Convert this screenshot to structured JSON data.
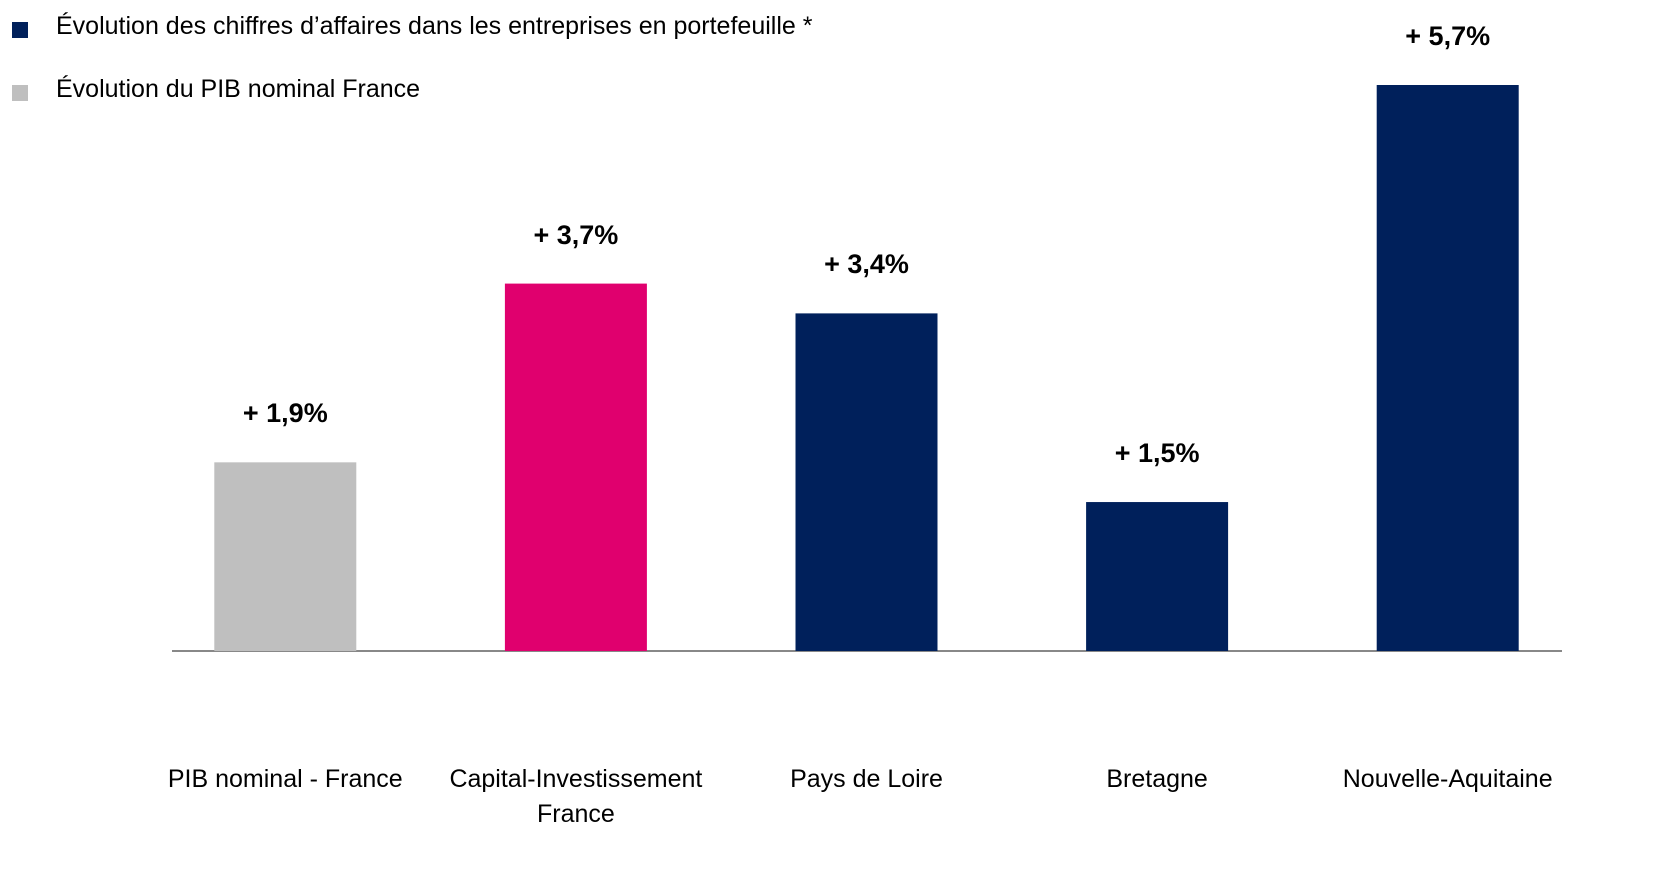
{
  "chart_data": {
    "type": "bar",
    "legend": [
      {
        "name": "Évolution des chiffres d’affaires dans les entreprises en portefeuille *",
        "color": "#00205b"
      },
      {
        "name": "Évolution du PIB nominal France",
        "color": "#bfbfbf"
      }
    ],
    "categories": [
      "PIB nominal - France",
      "Capital-Investissement France",
      "Pays de Loire",
      "Bretagne",
      "Nouvelle-Aquitaine"
    ],
    "values": [
      1.9,
      3.7,
      3.4,
      1.5,
      5.7
    ],
    "value_labels": [
      "+ 1,9%",
      "+ 3,7%",
      "+ 3,4%",
      "+ 1,5%",
      "+ 5,7%"
    ],
    "colors": [
      "#bfbfbf",
      "#e0006e",
      "#00205b",
      "#00205b",
      "#00205b"
    ]
  }
}
